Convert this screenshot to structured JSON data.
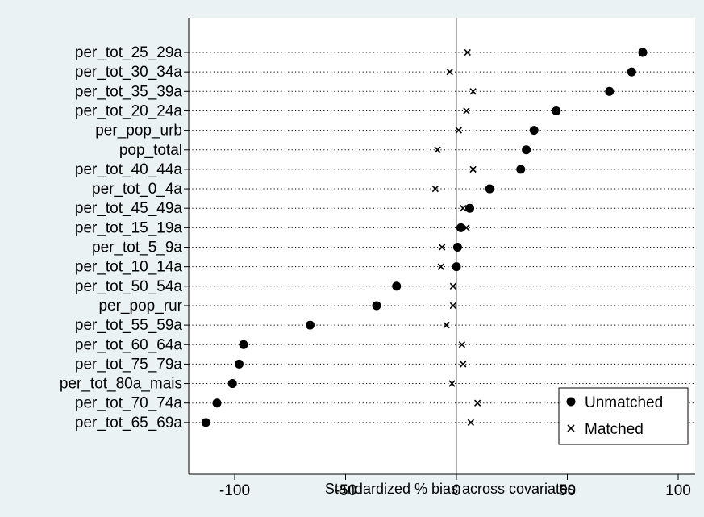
{
  "colors": {
    "background": "#eaf2f3",
    "plot_background": "#ffffff",
    "marker": "#000000",
    "zero_line": "#8c8c8c"
  },
  "chart_data": {
    "type": "scatter",
    "xlabel": "Standardized % bias across covariates",
    "ylabel": "",
    "xlim": [
      -120,
      108
    ],
    "xticks": [
      -100,
      -50,
      0,
      50,
      100
    ],
    "reference_line": 0,
    "grid": "dotted horizontal lines per covariate",
    "legend_position": "bottom-right",
    "categories": [
      "per_tot_25_29a",
      "per_tot_30_34a",
      "per_tot_35_39a",
      "per_tot_20_24a",
      "per_pop_urb",
      "pop_total",
      "per_tot_40_44a",
      "per_tot_0_4a",
      "per_tot_45_49a",
      "per_tot_15_19a",
      "per_tot_5_9a",
      "per_tot_10_14a",
      "per_tot_50_54a",
      "per_pop_rur",
      "per_tot_55_59a",
      "per_tot_60_64a",
      "per_tot_75_79a",
      "per_tot_80a_mais",
      "per_tot_70_74a",
      "per_tot_65_69a"
    ],
    "series": [
      {
        "name": "Unmatched",
        "marker": "circle",
        "values": [
          84,
          79,
          69,
          45,
          35,
          31.5,
          29,
          15,
          6,
          2,
          0.5,
          0,
          -27,
          -36,
          -66,
          -96,
          -98,
          -101,
          -108,
          -113
        ]
      },
      {
        "name": "Matched",
        "marker": "x",
        "values": [
          5,
          -3,
          7.5,
          4.5,
          1,
          -8.5,
          7.5,
          -9.5,
          3,
          4.5,
          -6.5,
          -7,
          -1.5,
          -1.5,
          -4.5,
          2.5,
          3,
          -2,
          9.5,
          6.5
        ]
      }
    ]
  }
}
